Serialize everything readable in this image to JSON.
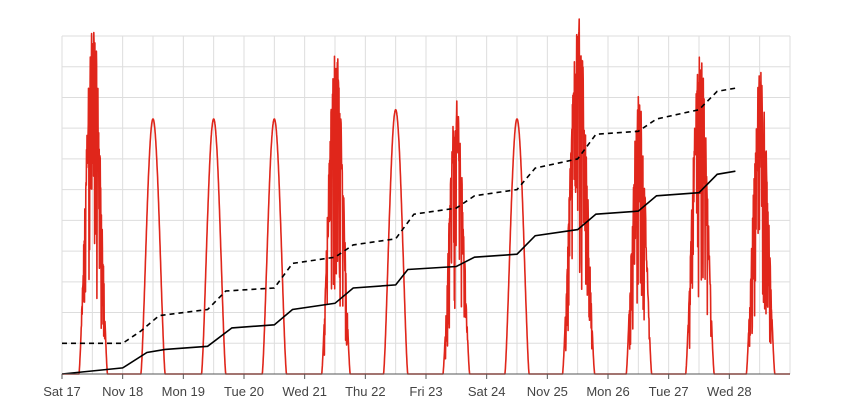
{
  "chart_data": {
    "type": "line",
    "title": "",
    "xlabel": "",
    "ylabel": "",
    "x_tick_labels": [
      "Sat 17",
      "Nov 18",
      "Mon 19",
      "Tue 20",
      "Wed 21",
      "Thu 22",
      "Fri 23",
      "Sat 24",
      "Nov 25",
      "Mon 26",
      "Tue 27",
      "Wed 28"
    ],
    "x_range_days": [
      0,
      12
    ],
    "y_range": [
      0,
      11
    ],
    "grid": true,
    "legend": "none",
    "colors": {
      "power": "#e0261b",
      "cumulative": "#000000",
      "cumulative_dashed": "#000000",
      "grid": "#dddddd",
      "axis": "#555555"
    },
    "series": [
      {
        "style": "red-line",
        "daily_peaks": [
          {
            "day": 0,
            "start": 0.28,
            "end": 0.75,
            "peak": 10.9,
            "noisy": true
          },
          {
            "day": 1,
            "start": 0.3,
            "end": 0.7,
            "peak": 8.3,
            "noisy": false
          },
          {
            "day": 2,
            "start": 0.3,
            "end": 0.7,
            "peak": 8.3,
            "noisy": false
          },
          {
            "day": 3,
            "start": 0.3,
            "end": 0.7,
            "peak": 8.3,
            "noisy": false
          },
          {
            "day": 4,
            "start": 0.28,
            "end": 0.75,
            "peak": 10.2,
            "noisy": true
          },
          {
            "day": 5,
            "start": 0.3,
            "end": 0.7,
            "peak": 8.6,
            "noisy": false
          },
          {
            "day": 6,
            "start": 0.28,
            "end": 0.72,
            "peak": 8.6,
            "noisy": true
          },
          {
            "day": 7,
            "start": 0.3,
            "end": 0.7,
            "peak": 8.3,
            "noisy": false
          },
          {
            "day": 8,
            "start": 0.25,
            "end": 0.78,
            "peak": 11.1,
            "noisy": true
          },
          {
            "day": 9,
            "start": 0.3,
            "end": 0.72,
            "peak": 8.7,
            "noisy": true
          },
          {
            "day": 10,
            "start": 0.28,
            "end": 0.75,
            "peak": 10.2,
            "noisy": true
          },
          {
            "day": 11,
            "start": 0.28,
            "end": 0.75,
            "peak": 9.5,
            "noisy": true
          }
        ]
      },
      {
        "style": "solid-black",
        "points": [
          [
            0,
            0.0
          ],
          [
            1,
            0.2
          ],
          [
            1.4,
            0.7
          ],
          [
            1.7,
            0.8
          ],
          [
            2.4,
            0.9
          ],
          [
            2.8,
            1.5
          ],
          [
            3.5,
            1.6
          ],
          [
            3.8,
            2.1
          ],
          [
            4.5,
            2.3
          ],
          [
            4.8,
            2.8
          ],
          [
            5.5,
            2.9
          ],
          [
            5.7,
            3.4
          ],
          [
            6.5,
            3.5
          ],
          [
            6.8,
            3.8
          ],
          [
            7.5,
            3.9
          ],
          [
            7.8,
            4.5
          ],
          [
            8.5,
            4.7
          ],
          [
            8.8,
            5.2
          ],
          [
            9.5,
            5.3
          ],
          [
            9.8,
            5.8
          ],
          [
            10.5,
            5.9
          ],
          [
            10.8,
            6.5
          ],
          [
            11.1,
            6.6
          ]
        ]
      },
      {
        "style": "dashed-black",
        "points": [
          [
            0,
            1.0
          ],
          [
            1,
            1.0
          ],
          [
            1.3,
            1.4
          ],
          [
            1.6,
            1.9
          ],
          [
            2.4,
            2.1
          ],
          [
            2.7,
            2.7
          ],
          [
            3.5,
            2.8
          ],
          [
            3.8,
            3.6
          ],
          [
            4.5,
            3.8
          ],
          [
            4.8,
            4.2
          ],
          [
            5.5,
            4.4
          ],
          [
            5.8,
            5.2
          ],
          [
            6.5,
            5.4
          ],
          [
            6.8,
            5.8
          ],
          [
            7.5,
            6.0
          ],
          [
            7.8,
            6.7
          ],
          [
            8.5,
            7.0
          ],
          [
            8.8,
            7.8
          ],
          [
            9.5,
            7.9
          ],
          [
            9.8,
            8.3
          ],
          [
            10.5,
            8.6
          ],
          [
            10.8,
            9.2
          ],
          [
            11.1,
            9.3
          ]
        ]
      }
    ]
  }
}
